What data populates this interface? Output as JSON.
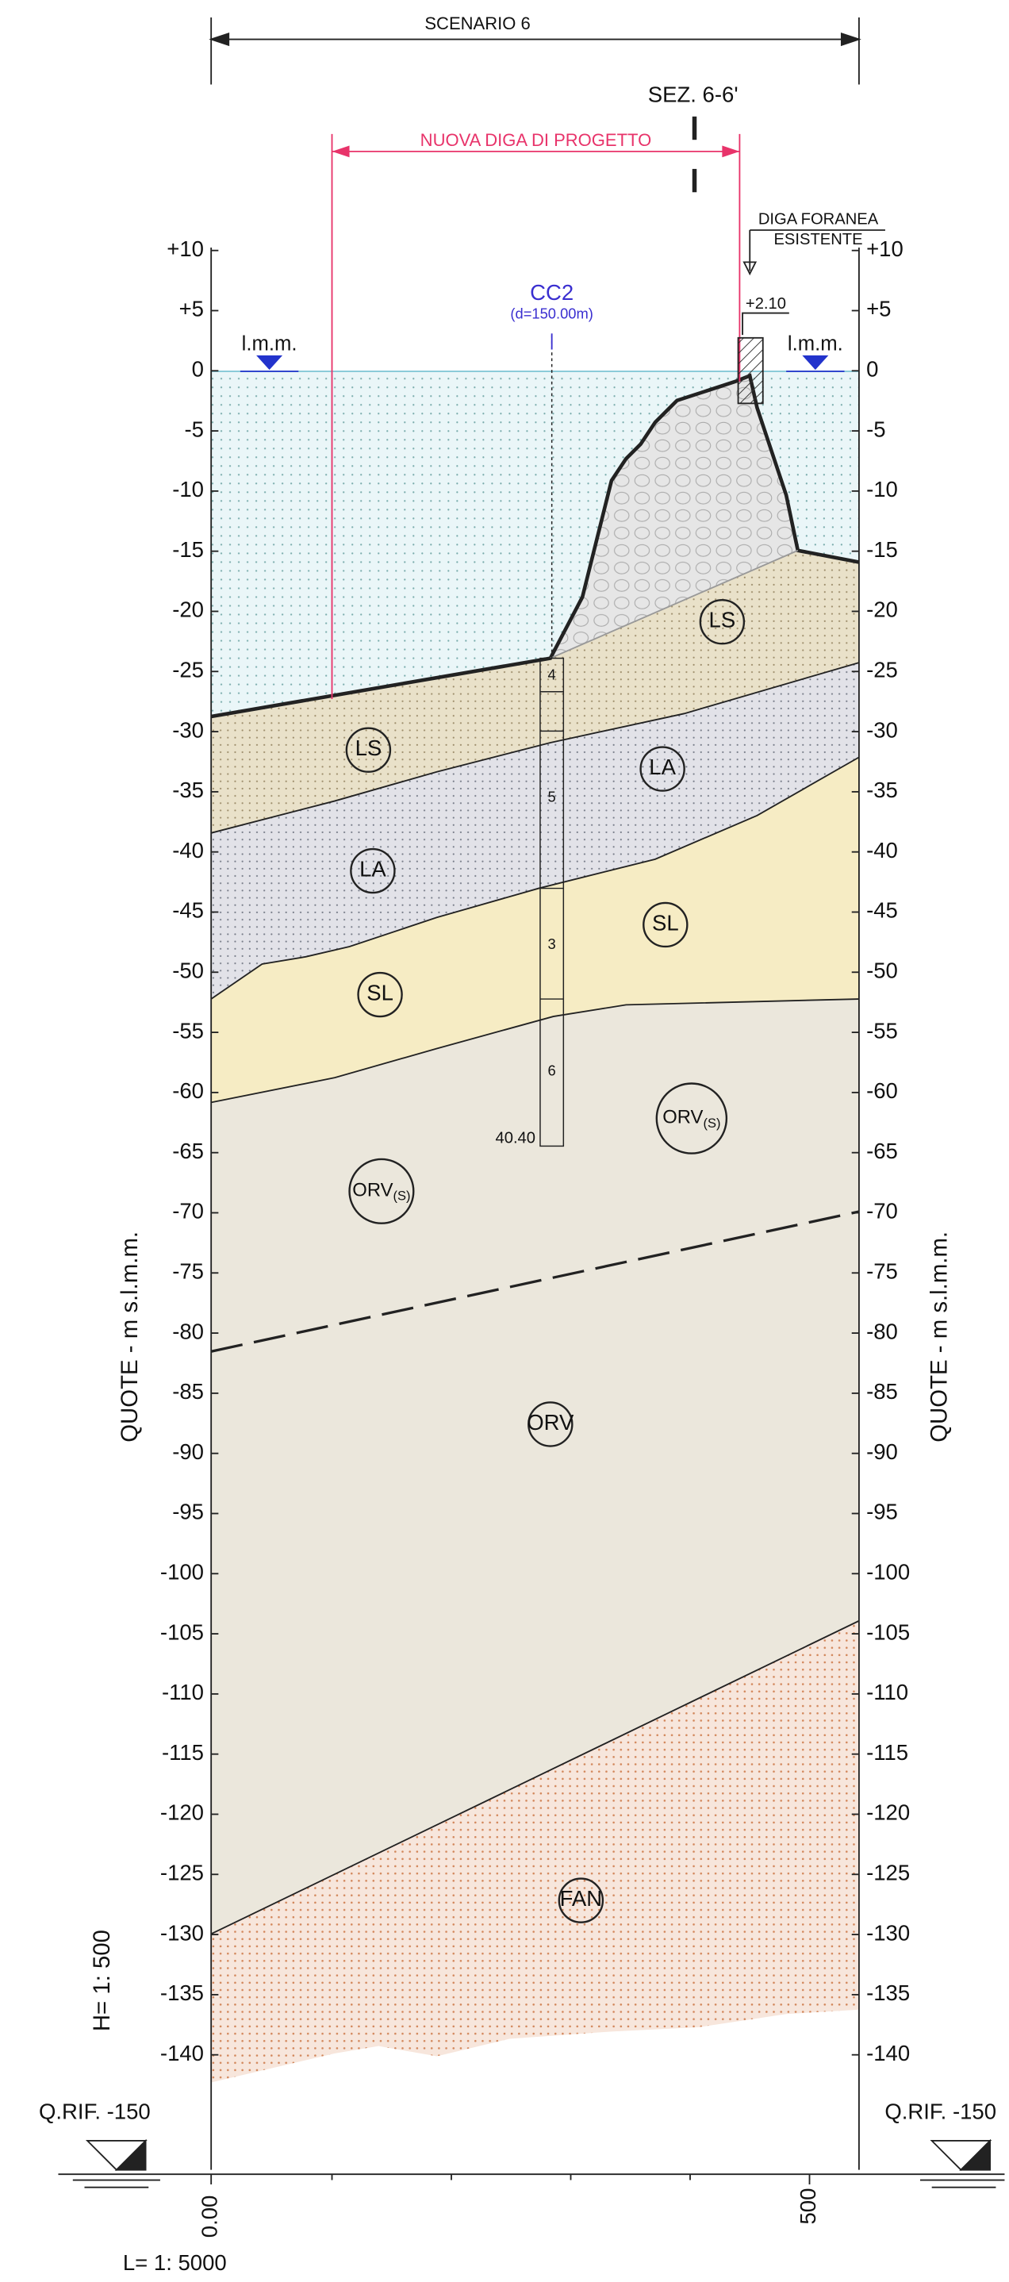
{
  "header": {
    "scenario": "SCENARIO 6",
    "section": "SEZ. 6-6'",
    "new_dam": "NUOVA DIGA DI PROGETTO"
  },
  "existing_dam": {
    "line1": "DIGA FORANEA",
    "line2": "ESISTENTE",
    "elevation": "+2.10"
  },
  "borehole": {
    "name": "CC2",
    "distance": "(d=150.00m)",
    "layers": [
      "4",
      "5",
      "3",
      "6"
    ],
    "depth": "40.40"
  },
  "sea_level": {
    "left": "l.m.m.",
    "right": "l.m.m."
  },
  "elevation_ticks": [
    "+10",
    "+5",
    "0",
    "-5",
    "-10",
    "-15",
    "-20",
    "-25",
    "-30",
    "-35",
    "-40",
    "-45",
    "-50",
    "-55",
    "-60",
    "-65",
    "-70",
    "-75",
    "-80",
    "-85",
    "-90",
    "-95",
    "-100",
    "-105",
    "-110",
    "-115",
    "-120",
    "-125",
    "-130",
    "-135",
    "-140"
  ],
  "layers": [
    {
      "name": "LS"
    },
    {
      "name": "LA"
    },
    {
      "name": "SL"
    },
    {
      "name": "ORV",
      "sub": "(S)"
    },
    {
      "name": "LS"
    },
    {
      "name": "LA"
    },
    {
      "name": "SL"
    },
    {
      "name": "ORV",
      "sub": "(S)"
    },
    {
      "name": "ORV"
    },
    {
      "name": "FAN"
    }
  ],
  "axis_title": {
    "left": "QUOTE - m s.l.m.m.",
    "right": "QUOTE - m s.l.m.m."
  },
  "scales": {
    "vertical": "H= 1: 500",
    "horizontal": "L= 1: 5000"
  },
  "reference": {
    "left": "Q.RIF. -150",
    "right": "Q.RIF. -150"
  },
  "distance_ticks": [
    "0.00",
    "500"
  ]
}
